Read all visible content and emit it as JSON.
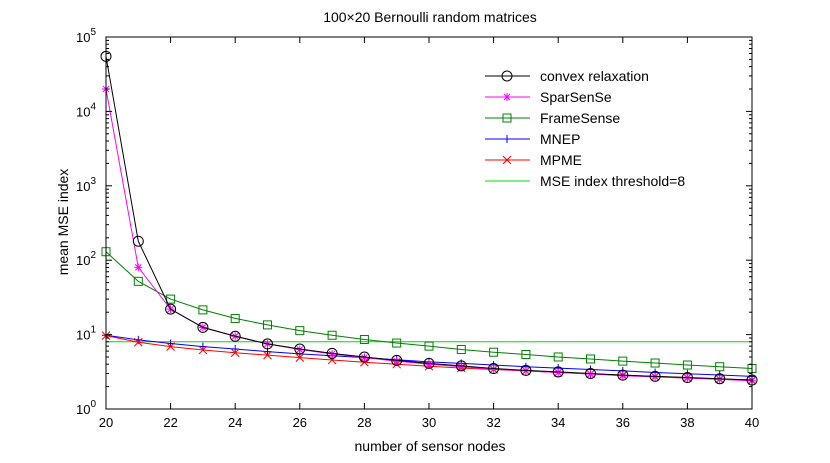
{
  "chart_data": {
    "type": "line",
    "title": "100×20 Bernoulli random matrices",
    "xlabel": "number of sensor nodes",
    "ylabel": "mean MSE index",
    "xlim": [
      20,
      40
    ],
    "ylim": [
      1,
      100000
    ],
    "yscale": "log",
    "xticks": [
      20,
      22,
      24,
      26,
      28,
      30,
      32,
      34,
      36,
      38,
      40
    ],
    "yticks": [
      {
        "value": 1,
        "base": "10",
        "exp": "0"
      },
      {
        "value": 10,
        "base": "10",
        "exp": "1"
      },
      {
        "value": 100,
        "base": "10",
        "exp": "2"
      },
      {
        "value": 1000,
        "base": "10",
        "exp": "3"
      },
      {
        "value": 10000,
        "base": "10",
        "exp": "4"
      },
      {
        "value": 100000,
        "base": "10",
        "exp": "5"
      }
    ],
    "legend_position": "top-right",
    "x": [
      20,
      21,
      22,
      23,
      24,
      25,
      26,
      27,
      28,
      29,
      30,
      31,
      32,
      33,
      34,
      35,
      36,
      37,
      38,
      39,
      40
    ],
    "series": [
      {
        "name": "convex relaxation",
        "color": "#000000",
        "marker": "circle",
        "values": [
          55000,
          180,
          22,
          12.5,
          9.5,
          7.5,
          6.4,
          5.6,
          5.0,
          4.5,
          4.1,
          3.8,
          3.5,
          3.3,
          3.15,
          3.0,
          2.85,
          2.75,
          2.65,
          2.55,
          2.45
        ]
      },
      {
        "name": "SparSenSe",
        "color": "#ff00ff",
        "marker": "asterisk",
        "values": [
          20000,
          80,
          22,
          12.5,
          9.5,
          7.5,
          6.3,
          5.5,
          4.9,
          4.4,
          4.0,
          3.7,
          3.45,
          3.25,
          3.1,
          2.95,
          2.8,
          2.7,
          2.6,
          2.5,
          2.4
        ]
      },
      {
        "name": "FrameSense",
        "color": "#008000",
        "marker": "square",
        "values": [
          130,
          52,
          30,
          21.5,
          16.5,
          13.5,
          11.3,
          9.8,
          8.6,
          7.7,
          7.0,
          6.3,
          5.8,
          5.4,
          5.0,
          4.7,
          4.4,
          4.15,
          3.9,
          3.7,
          3.5
        ]
      },
      {
        "name": "MNEP",
        "color": "#0000ff",
        "marker": "plus",
        "values": [
          9.8,
          8.5,
          7.6,
          6.9,
          6.4,
          5.9,
          5.5,
          5.2,
          4.9,
          4.6,
          4.3,
          4.1,
          3.9,
          3.7,
          3.55,
          3.4,
          3.25,
          3.1,
          2.98,
          2.86,
          2.75
        ]
      },
      {
        "name": "MPME",
        "color": "#ff0000",
        "marker": "x",
        "values": [
          9.7,
          7.9,
          6.9,
          6.2,
          5.7,
          5.3,
          4.9,
          4.55,
          4.25,
          4.0,
          3.75,
          3.55,
          3.4,
          3.25,
          3.1,
          2.97,
          2.85,
          2.74,
          2.63,
          2.53,
          2.44
        ]
      },
      {
        "name": "MSE index threshold=8",
        "color": "#00dd00",
        "marker": "none",
        "values": [
          8,
          8,
          8,
          8,
          8,
          8,
          8,
          8,
          8,
          8,
          8,
          8,
          8,
          8,
          8,
          8,
          8,
          8,
          8,
          8,
          8
        ]
      }
    ]
  }
}
